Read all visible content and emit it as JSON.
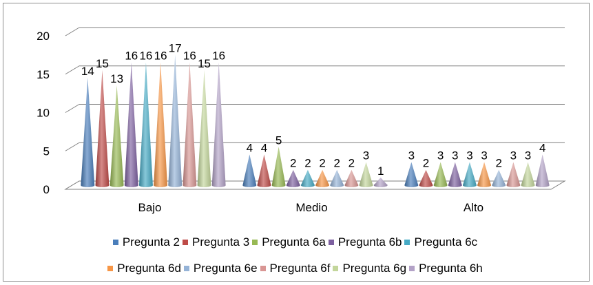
{
  "chart_data": {
    "type": "bar",
    "title": "",
    "xlabel": "",
    "ylabel": "",
    "ylim": [
      0,
      20
    ],
    "yticks": [
      0,
      5,
      10,
      15,
      20
    ],
    "grid": true,
    "legend_position": "bottom",
    "categories": [
      "Bajo",
      "Medio",
      "Alto"
    ],
    "series": [
      {
        "name": "Pregunta 2",
        "color": "#4a7ebb",
        "values": [
          14,
          4,
          3
        ]
      },
      {
        "name": "Pregunta 3",
        "color": "#be4b48",
        "values": [
          15,
          4,
          2
        ]
      },
      {
        "name": "Pregunta 6a",
        "color": "#98b954",
        "values": [
          13,
          5,
          3
        ]
      },
      {
        "name": "Pregunta 6b",
        "color": "#7d60a0",
        "values": [
          16,
          2,
          3
        ]
      },
      {
        "name": "Pregunta 6c",
        "color": "#46aac5",
        "values": [
          16,
          2,
          3
        ]
      },
      {
        "name": "Pregunta 6d",
        "color": "#f79646",
        "values": [
          16,
          2,
          3
        ]
      },
      {
        "name": "Pregunta 6e",
        "color": "#95b3d7",
        "values": [
          17,
          2,
          2
        ]
      },
      {
        "name": "Pregunta 6f",
        "color": "#d99694",
        "values": [
          16,
          2,
          3
        ]
      },
      {
        "name": "Pregunta 6g",
        "color": "#c3d69b",
        "values": [
          15,
          3,
          3
        ]
      },
      {
        "name": "Pregunta 6h",
        "color": "#b3a2c7",
        "values": [
          16,
          1,
          4
        ]
      }
    ]
  }
}
